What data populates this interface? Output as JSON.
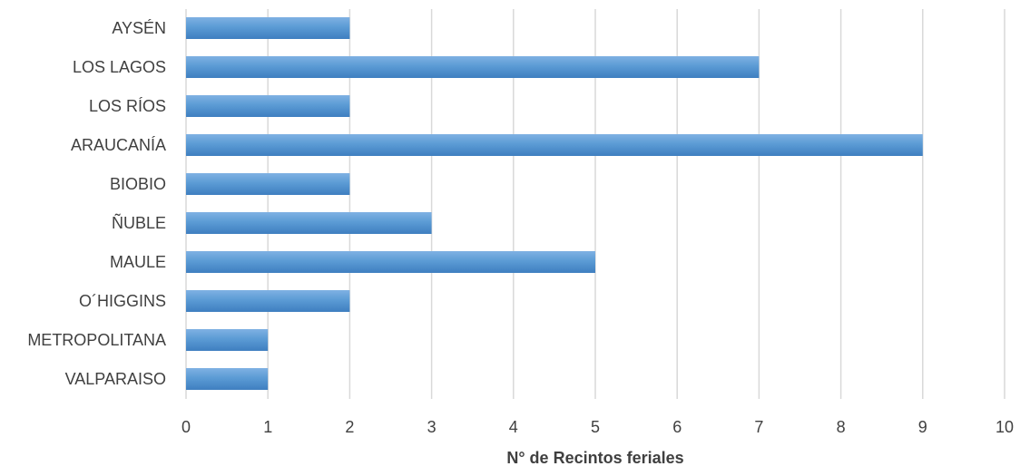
{
  "chart_data": {
    "type": "bar",
    "orientation": "horizontal",
    "categories": [
      "AYSÉN",
      "LOS LAGOS",
      "LOS RÍOS",
      "ARAUCANÍA",
      "BIOBIO",
      "ÑUBLE",
      "MAULE",
      "O´HIGGINS",
      "METROPOLITANA",
      "VALPARAISO"
    ],
    "values": [
      2,
      7,
      2,
      9,
      2,
      3,
      5,
      2,
      1,
      1
    ],
    "title": "",
    "xlabel": "N° de Recintos feriales",
    "ylabel": "",
    "xlim": [
      0,
      10
    ],
    "xticks": [
      0,
      1,
      2,
      3,
      4,
      5,
      6,
      7,
      8,
      9,
      10
    ],
    "grid": true,
    "legend": "none",
    "colors": {
      "bar_top": "#7fb1e3",
      "bar_mid": "#5b9bd5",
      "bar_bottom": "#3f7fc0",
      "grid": "#d9d9d9",
      "text": "#404040"
    }
  }
}
